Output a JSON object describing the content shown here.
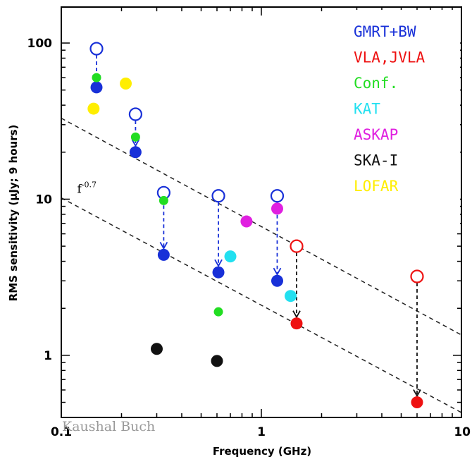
{
  "chart_data": {
    "type": "scatter",
    "xlabel": "Frequency (GHz)",
    "ylabel": "RMS sensitivity (μJy; 9 hours)",
    "xscale": "log",
    "yscale": "log",
    "xlim": [
      0.1,
      10
    ],
    "ylim": [
      0.4,
      170
    ],
    "x_ticks": [
      "0.1",
      "1",
      "10"
    ],
    "y_ticks": [
      "1",
      "10",
      "100"
    ],
    "legend_position": "top-right",
    "series": [
      {
        "name": "GMRT+BW",
        "color": "#1830d8",
        "points": [
          [
            0.15,
            52
          ],
          [
            0.235,
            20
          ],
          [
            0.325,
            4.4
          ],
          [
            0.61,
            3.4
          ],
          [
            1.2,
            3.0
          ]
        ],
        "open_points": [
          [
            0.15,
            92
          ],
          [
            0.235,
            35
          ],
          [
            0.325,
            11
          ],
          [
            0.61,
            10.5
          ],
          [
            1.2,
            10.5
          ]
        ]
      },
      {
        "name": "VLA,JVLA",
        "color": "#ee1111",
        "points": [
          [
            1.5,
            1.6
          ],
          [
            6.0,
            0.5
          ]
        ],
        "open_points": [
          [
            1.5,
            5.0
          ],
          [
            6.0,
            3.2
          ]
        ]
      },
      {
        "name": "Conf.",
        "color": "#22dd22",
        "points": [
          [
            0.15,
            60
          ],
          [
            0.235,
            25
          ],
          [
            0.325,
            9.8
          ],
          [
            0.61,
            1.9
          ]
        ]
      },
      {
        "name": "KAT",
        "color": "#22e0f0",
        "points": [
          [
            0.7,
            4.3
          ],
          [
            1.4,
            2.4
          ]
        ]
      },
      {
        "name": "ASKAP",
        "color": "#e020e0",
        "points": [
          [
            0.843,
            7.2
          ],
          [
            1.2,
            8.7
          ]
        ]
      },
      {
        "name": "SKA-I",
        "color": "#111111",
        "points": [
          [
            0.3,
            1.1
          ],
          [
            0.6,
            0.92
          ]
        ]
      },
      {
        "name": "LOFAR",
        "color": "#ffee00",
        "points": [
          [
            0.145,
            38
          ],
          [
            0.21,
            55
          ]
        ]
      }
    ],
    "arrows": [
      {
        "x": 0.15,
        "from": 92,
        "to": 52,
        "color": "#1830d8"
      },
      {
        "x": 0.235,
        "from": 35,
        "to": 20,
        "color": "#1830d8"
      },
      {
        "x": 0.325,
        "from": 11,
        "to": 4.4,
        "color": "#1830d8"
      },
      {
        "x": 0.61,
        "from": 10.5,
        "to": 3.4,
        "color": "#1830d8"
      },
      {
        "x": 1.2,
        "from": 10.5,
        "to": 3.0,
        "color": "#1830d8"
      },
      {
        "x": 1.5,
        "from": 5.0,
        "to": 1.6,
        "color": "#111111"
      },
      {
        "x": 6.0,
        "from": 3.2,
        "to": 0.5,
        "color": "#111111"
      }
    ],
    "reference_lines": [
      {
        "label": "upper",
        "x": [
          0.1,
          10
        ],
        "y": [
          33,
          1.35
        ]
      },
      {
        "label": "lower",
        "x": [
          0.1,
          10
        ],
        "y": [
          10.2,
          0.43
        ]
      }
    ],
    "annotation": {
      "text": "f",
      "exponent": "-0.7",
      "x": 0.12,
      "y": 11
    },
    "watermark": "Kaushal Buch"
  }
}
